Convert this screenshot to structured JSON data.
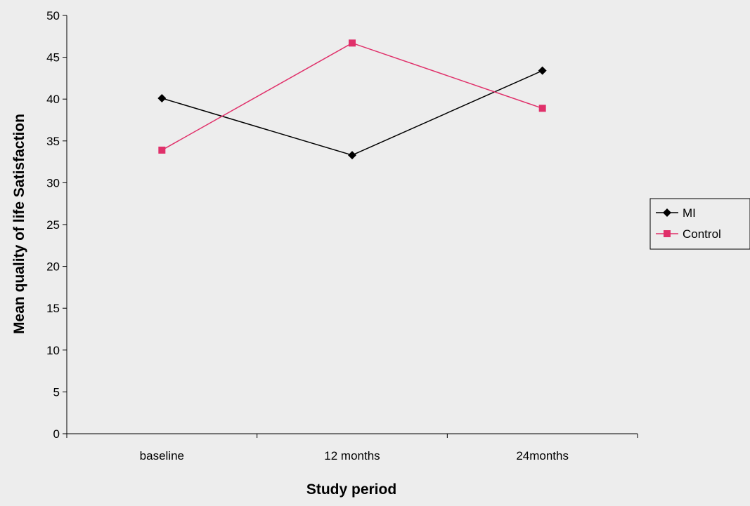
{
  "chart_data": {
    "type": "line",
    "title": "",
    "xlabel": "Study period",
    "ylabel": "Mean quality of life Satisfaction",
    "categories": [
      "baseline",
      "12 months",
      "24months"
    ],
    "ylim": [
      0,
      50
    ],
    "yticks": [
      0,
      5,
      10,
      15,
      20,
      25,
      30,
      35,
      40,
      45,
      50
    ],
    "grid": false,
    "legend_position": "right",
    "series": [
      {
        "name": "MI",
        "values": [
          40.1,
          33.3,
          43.4
        ],
        "color": "#000000",
        "marker": "diamond"
      },
      {
        "name": "Control",
        "values": [
          33.9,
          46.7,
          38.9
        ],
        "color": "#e0306a",
        "marker": "square"
      }
    ]
  }
}
